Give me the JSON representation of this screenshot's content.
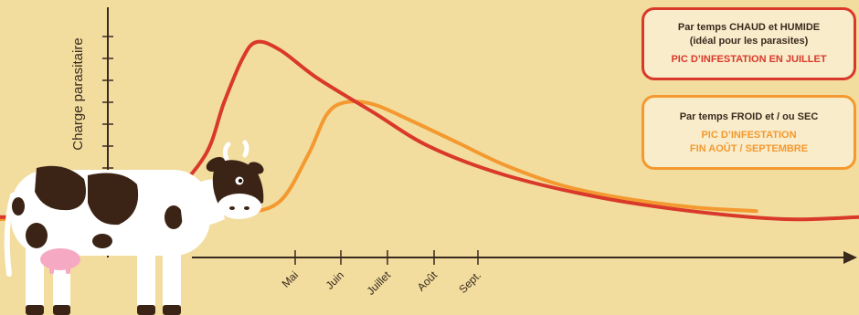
{
  "colors": {
    "background": "#f2dd9f",
    "hot_series": "#d9392a",
    "cold_series": "#f4992f",
    "axis": "#3a2a1e",
    "legend_fill": "#f8eccb"
  },
  "legend": {
    "hot": {
      "line1": "Par temps CHAUD et HUMIDE",
      "line2": "(idéal pour les parasites)",
      "peak": "PIC D’INFESTATION EN JUILLET"
    },
    "cold": {
      "line1": "Par temps FROID et / ou SEC",
      "peak1": "PIC D’INFESTATION",
      "peak2": "FIN AOÛT / SEPTEMBRE"
    }
  },
  "chart_data": {
    "type": "line",
    "title": "",
    "ylabel": "Charge parasitaire",
    "xlabel": "",
    "categories": [
      "Mai",
      "Juin",
      "Juillet",
      "Août",
      "Sept."
    ],
    "x_range": [
      3.6,
      12.8
    ],
    "ylim": [
      0,
      10
    ],
    "grid": false,
    "legend_position": "top-right",
    "series": [
      {
        "name": "Par temps CHAUD et HUMIDE",
        "color": "#d9392a",
        "points": [
          [
            3.6,
            0.1
          ],
          [
            4.6,
            0.1
          ],
          [
            5.0,
            0.3
          ],
          [
            5.4,
            1.1
          ],
          [
            5.8,
            3.2
          ],
          [
            6.0,
            5.8
          ],
          [
            6.2,
            8.0
          ],
          [
            6.35,
            8.8
          ],
          [
            6.6,
            8.4
          ],
          [
            7.0,
            7.0
          ],
          [
            7.6,
            5.3
          ],
          [
            8.2,
            3.6
          ],
          [
            9.0,
            2.2
          ],
          [
            10.0,
            1.1
          ],
          [
            11.0,
            0.4
          ],
          [
            12.0,
            0.0
          ],
          [
            12.8,
            0.1
          ]
        ]
      },
      {
        "name": "Par temps FROID et / ou SEC",
        "color": "#f4992f",
        "points": [
          [
            3.6,
            0.0
          ],
          [
            4.8,
            0.1
          ],
          [
            5.6,
            0.2
          ],
          [
            6.2,
            0.3
          ],
          [
            6.6,
            0.9
          ],
          [
            6.9,
            3.2
          ],
          [
            7.1,
            5.2
          ],
          [
            7.3,
            5.8
          ],
          [
            7.6,
            5.7
          ],
          [
            8.0,
            4.9
          ],
          [
            8.5,
            3.8
          ],
          [
            9.0,
            2.7
          ],
          [
            9.6,
            1.7
          ],
          [
            10.2,
            1.1
          ],
          [
            11.0,
            0.6
          ],
          [
            11.7,
            0.4
          ]
        ]
      }
    ]
  }
}
